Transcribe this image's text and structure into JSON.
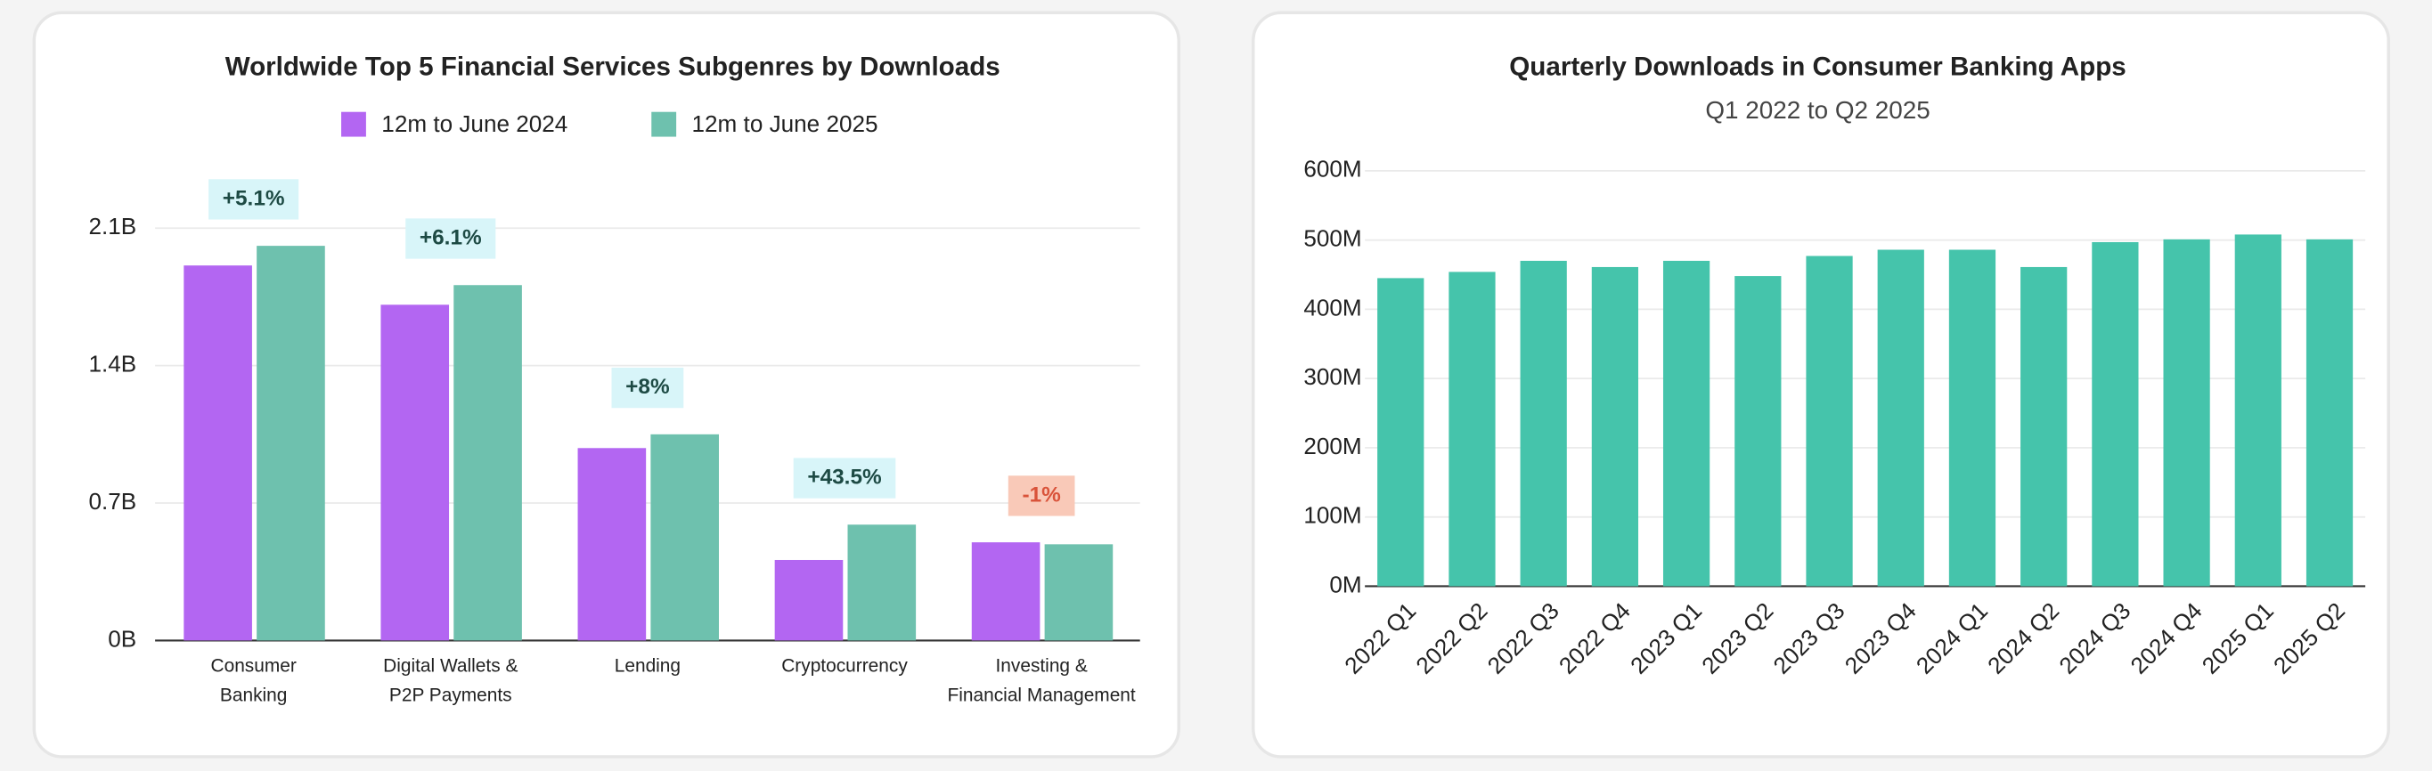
{
  "chart_data": [
    {
      "type": "bar",
      "title": "Worldwide Top 5 Financial Services Subgenres by Downloads",
      "categories": [
        [
          "Consumer",
          "Banking"
        ],
        [
          "Digital Wallets &",
          "P2P Payments"
        ],
        [
          "Lending"
        ],
        [
          "Cryptocurrency"
        ],
        [
          "Investing &",
          "Financial Management"
        ]
      ],
      "series": [
        {
          "name": "12m to June 2024",
          "color": "#b366f2",
          "values": [
            1.91,
            1.71,
            0.98,
            0.41,
            0.5
          ]
        },
        {
          "name": "12m to June 2025",
          "color": "#6ec1ae",
          "values": [
            2.01,
            1.81,
            1.05,
            0.59,
            0.49
          ]
        }
      ],
      "annotations": [
        "+5.1%",
        "+6.1%",
        "+8%",
        "+43.5%",
        "-1%"
      ],
      "annotation_colors": [
        "#d8f5f9",
        "#d8f5f9",
        "#d8f5f9",
        "#d8f5f9",
        "#f9c9b8"
      ],
      "annotation_text_colors": [
        "#1d4a44",
        "#1d4a44",
        "#1d4a44",
        "#1d4a44",
        "#d9533a"
      ],
      "ylim": [
        0,
        2.1
      ],
      "yticks": [
        {
          "value": 0,
          "label": "0B"
        },
        {
          "value": 0.7,
          "label": "0.7B"
        },
        {
          "value": 1.4,
          "label": "1.4B"
        },
        {
          "value": 2.1,
          "label": "2.1B"
        }
      ],
      "grid": true
    },
    {
      "type": "bar",
      "title": "Quarterly Downloads in Consumer Banking Apps",
      "subtitle": "Q1 2022 to Q2 2025",
      "categories": [
        "2022 Q1",
        "2022 Q2",
        "2022 Q3",
        "2022 Q4",
        "2023 Q1",
        "2023 Q2",
        "2023 Q3",
        "2023 Q4",
        "2024 Q1",
        "2024 Q2",
        "2024 Q3",
        "2024 Q4",
        "2025 Q1",
        "2025 Q2"
      ],
      "values": [
        445,
        454,
        470,
        461,
        470,
        448,
        477,
        486,
        486,
        461,
        497,
        501,
        508,
        501
      ],
      "color": "#45c4ab",
      "ylim": [
        0,
        600
      ],
      "yticks": [
        {
          "value": 0,
          "label": "0M"
        },
        {
          "value": 100,
          "label": "100M"
        },
        {
          "value": 200,
          "label": "200M"
        },
        {
          "value": 300,
          "label": "300M"
        },
        {
          "value": 400,
          "label": "400M"
        },
        {
          "value": 500,
          "label": "500M"
        },
        {
          "value": 600,
          "label": "600M"
        }
      ],
      "grid": true
    }
  ]
}
